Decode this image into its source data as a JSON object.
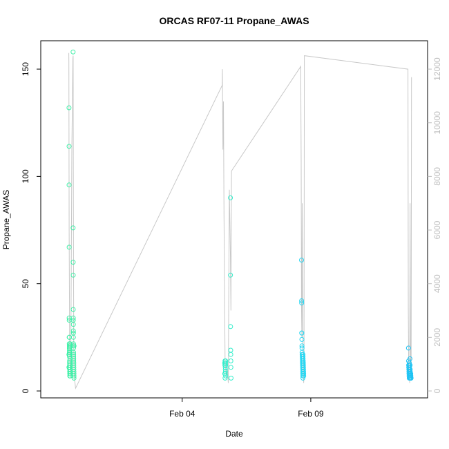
{
  "chart_data": {
    "type": "scatter",
    "title": "ORCAS RF07-11 Propane_AWAS",
    "xlabel": "Date",
    "ylabel": "Propane_AWAS",
    "x_ticks": [
      "Feb 04",
      "Feb 09"
    ],
    "y_ticks": [
      0,
      50,
      100,
      150
    ],
    "y2_ticks": [
      0,
      2000,
      4000,
      6000,
      8000,
      10000,
      12000
    ],
    "ylim": [
      0,
      160
    ],
    "y2lim": [
      0,
      12800
    ],
    "xlim": [
      "2016-01-29T12:00",
      "2016-02-13T13:00"
    ],
    "colors": {
      "altitude_line": "#c8c8c8",
      "flight_colors": [
        "#3cf0a6",
        "#32eecb",
        "#26d7f2",
        "#20c4f4",
        "#2a83ee"
      ],
      "axis": "#000000",
      "right_axis": "#bdbdbd"
    },
    "series": [
      {
        "flight_index": 0,
        "x": [
          "2016-01-30T14:20",
          "2016-01-30T14:20",
          "2016-01-30T14:22",
          "2016-01-30T14:24",
          "2016-01-30T14:26",
          "2016-01-30T14:28",
          "2016-01-30T14:30",
          "2016-01-30T14:32",
          "2016-01-30T14:34",
          "2016-01-30T14:36",
          "2016-01-30T14:38",
          "2016-01-30T14:40",
          "2016-01-30T14:42",
          "2016-01-30T14:44",
          "2016-01-30T14:46",
          "2016-01-30T14:48",
          "2016-01-30T14:50",
          "2016-01-30T14:52",
          "2016-01-30T14:54",
          "2016-01-30T14:56",
          "2016-01-30T14:58",
          "2016-01-30T15:00",
          "2016-01-30T15:02",
          "2016-01-30T15:04",
          "2016-01-30T15:06",
          "2016-01-30T15:08",
          "2016-01-30T15:10",
          "2016-01-30T15:12",
          "2016-01-30T15:14",
          "2016-01-30T15:16",
          "2016-01-30T15:18",
          "2016-01-30T15:20",
          "2016-01-30T15:22",
          "2016-01-30T15:24",
          "2016-01-30T15:26",
          "2016-01-30T18:10",
          "2016-01-30T18:12",
          "2016-01-30T18:14",
          "2016-01-30T18:16",
          "2016-01-30T18:18",
          "2016-01-30T18:20",
          "2016-01-30T18:22",
          "2016-01-30T18:24",
          "2016-01-30T18:26",
          "2016-01-30T18:28",
          "2016-01-30T18:30",
          "2016-01-30T18:32",
          "2016-01-30T18:34",
          "2016-01-30T18:36",
          "2016-01-30T18:38",
          "2016-01-30T18:40",
          "2016-01-30T18:42",
          "2016-01-30T18:44",
          "2016-01-30T18:46",
          "2016-01-30T18:48",
          "2016-01-30T18:50",
          "2016-01-30T18:52",
          "2016-01-30T18:54",
          "2016-01-30T18:56",
          "2016-01-30T18:58",
          "2016-01-30T19:00",
          "2016-01-30T19:02",
          "2016-01-30T19:04"
        ],
        "y": [
          17,
          11,
          132,
          114,
          96,
          67,
          34,
          33,
          25,
          25,
          22,
          21,
          20,
          19,
          18,
          17,
          16,
          14,
          13,
          12,
          11,
          10,
          9,
          8,
          7,
          18,
          20,
          21,
          15,
          12,
          10,
          9,
          8,
          7,
          22,
          158,
          76,
          60,
          54,
          38,
          34,
          33,
          31,
          28,
          27,
          25,
          22,
          21,
          20,
          18,
          17,
          16,
          15,
          14,
          13,
          12,
          11,
          10,
          9,
          8,
          7,
          6,
          21
        ]
      },
      {
        "flight_index": 1,
        "x": [
          "2016-02-05T15:40",
          "2016-02-05T15:45",
          "2016-02-05T15:50",
          "2016-02-05T15:55",
          "2016-02-05T16:00",
          "2016-02-05T16:05",
          "2016-02-05T16:10",
          "2016-02-05T16:15",
          "2016-02-05T16:20",
          "2016-02-05T16:25",
          "2016-02-05T16:30",
          "2016-02-05T16:35",
          "2016-02-05T16:40",
          "2016-02-05T21:00",
          "2016-02-05T21:05",
          "2016-02-05T21:10",
          "2016-02-05T21:15",
          "2016-02-05T21:20",
          "2016-02-05T21:25",
          "2016-02-05T21:30",
          "2016-02-05T21:35"
        ],
        "y": [
          13,
          8,
          12,
          14,
          6,
          8,
          11,
          10,
          9,
          13,
          14,
          12,
          7,
          90,
          54,
          30,
          19,
          17,
          14,
          11,
          6
        ]
      },
      {
        "flight_index": 2,
        "x": [
          "2016-02-08T15:20",
          "2016-02-08T15:24",
          "2016-02-08T15:28",
          "2016-02-08T15:32",
          "2016-02-08T15:36",
          "2016-02-08T15:40",
          "2016-02-08T15:44",
          "2016-02-08T15:48",
          "2016-02-08T15:52",
          "2016-02-08T15:56",
          "2016-02-08T16:00",
          "2016-02-08T16:04",
          "2016-02-08T16:08",
          "2016-02-08T16:12",
          "2016-02-08T16:16",
          "2016-02-08T16:20",
          "2016-02-08T16:24",
          "2016-02-08T16:28",
          "2016-02-08T16:32",
          "2016-02-08T16:36",
          "2016-02-08T16:40",
          "2016-02-08T16:44",
          "2016-02-08T16:48",
          "2016-02-08T16:52",
          "2016-02-08T16:56",
          "2016-02-08T17:00",
          "2016-02-08T17:04",
          "2016-02-08T17:08",
          "2016-02-08T17:12",
          "2016-02-08T17:16",
          "2016-02-08T17:20",
          "2016-02-08T17:24"
        ],
        "y": [
          61,
          42,
          41,
          27,
          27,
          24,
          21,
          20,
          18,
          17,
          16,
          15,
          14,
          13,
          12,
          11,
          10,
          9,
          8,
          7,
          6,
          17,
          16,
          15,
          14,
          13,
          12,
          11,
          10,
          9,
          8,
          7
        ]
      },
      {
        "flight_index": 3,
        "x": [
          "2016-02-12T19:10",
          "2016-02-12T19:15",
          "2016-02-12T19:20",
          "2016-02-12T19:25",
          "2016-02-12T19:30",
          "2016-02-12T19:35",
          "2016-02-12T19:40",
          "2016-02-12T19:45",
          "2016-02-12T19:50",
          "2016-02-12T19:55",
          "2016-02-12T20:00",
          "2016-02-12T20:05",
          "2016-02-12T20:10",
          "2016-02-12T20:15",
          "2016-02-12T20:20",
          "2016-02-12T20:25",
          "2016-02-12T20:30",
          "2016-02-12T20:35",
          "2016-02-12T20:40",
          "2016-02-12T20:45",
          "2016-02-12T20:50",
          "2016-02-12T20:55",
          "2016-02-12T21:00",
          "2016-02-12T21:05",
          "2016-02-12T21:10",
          "2016-02-12T21:15",
          "2016-02-12T21:20",
          "2016-02-12T21:25",
          "2016-02-12T21:30",
          "2016-02-12T21:35"
        ],
        "y": [
          20,
          14,
          12,
          11,
          10,
          9,
          8,
          7,
          6,
          13,
          12,
          11,
          10,
          9,
          8,
          7,
          6,
          15,
          12,
          10,
          9,
          8,
          7,
          6,
          7,
          8,
          6,
          7,
          6,
          6
        ]
      }
    ],
    "altitude": {
      "x": [
        "2016-01-30T14:10",
        "2016-01-30T14:15",
        "2016-01-30T14:30",
        "2016-01-30T15:00",
        "2016-01-30T16:00",
        "2016-01-30T17:00",
        "2016-01-30T18:00",
        "2016-01-30T18:15",
        "2016-01-30T18:30",
        "2016-01-30T18:45",
        "2016-01-30T19:00",
        "2016-01-30T19:30",
        "2016-01-30T20:00",
        "2016-01-30T20:30",
        "2016-02-05T13:20",
        "2016-02-05T13:30",
        "2016-02-05T14:00",
        "2016-02-05T14:30",
        "2016-02-05T15:00",
        "2016-02-05T16:00",
        "2016-02-05T17:00",
        "2016-02-05T18:00",
        "2016-02-05T19:00",
        "2016-02-05T20:00",
        "2016-02-05T21:00",
        "2016-02-05T21:30",
        "2016-02-05T22:00",
        "2016-02-08T14:40",
        "2016-02-08T14:50",
        "2016-02-08T15:00",
        "2016-02-08T15:20",
        "2016-02-08T15:40",
        "2016-02-08T16:00",
        "2016-02-08T16:20",
        "2016-02-08T16:40",
        "2016-02-08T17:00",
        "2016-02-08T17:20",
        "2016-02-08T17:40",
        "2016-02-08T18:00",
        "2016-02-12T18:40",
        "2016-02-12T18:50",
        "2016-02-12T19:00",
        "2016-02-12T19:20",
        "2016-02-12T19:40",
        "2016-02-12T20:00",
        "2016-02-12T20:20",
        "2016-02-12T20:40",
        "2016-02-12T21:00",
        "2016-02-12T21:20",
        "2016-02-12T21:40",
        "2016-02-12T22:00"
      ],
      "y": [
        12600,
        12300,
        6000,
        1200,
        500,
        9000,
        12400,
        12500,
        6500,
        2000,
        800,
        400,
        300,
        100,
        11400,
        12000,
        9000,
        10800,
        6500,
        1200,
        500,
        900,
        300,
        7500,
        5000,
        3000,
        8200,
        12100,
        10000,
        8500,
        3000,
        2000,
        7000,
        4500,
        1500,
        900,
        300,
        600,
        12500,
        12000,
        8000,
        3000,
        1000,
        400,
        600,
        300,
        7000,
        1800,
        800,
        400,
        11700
      ]
    }
  }
}
